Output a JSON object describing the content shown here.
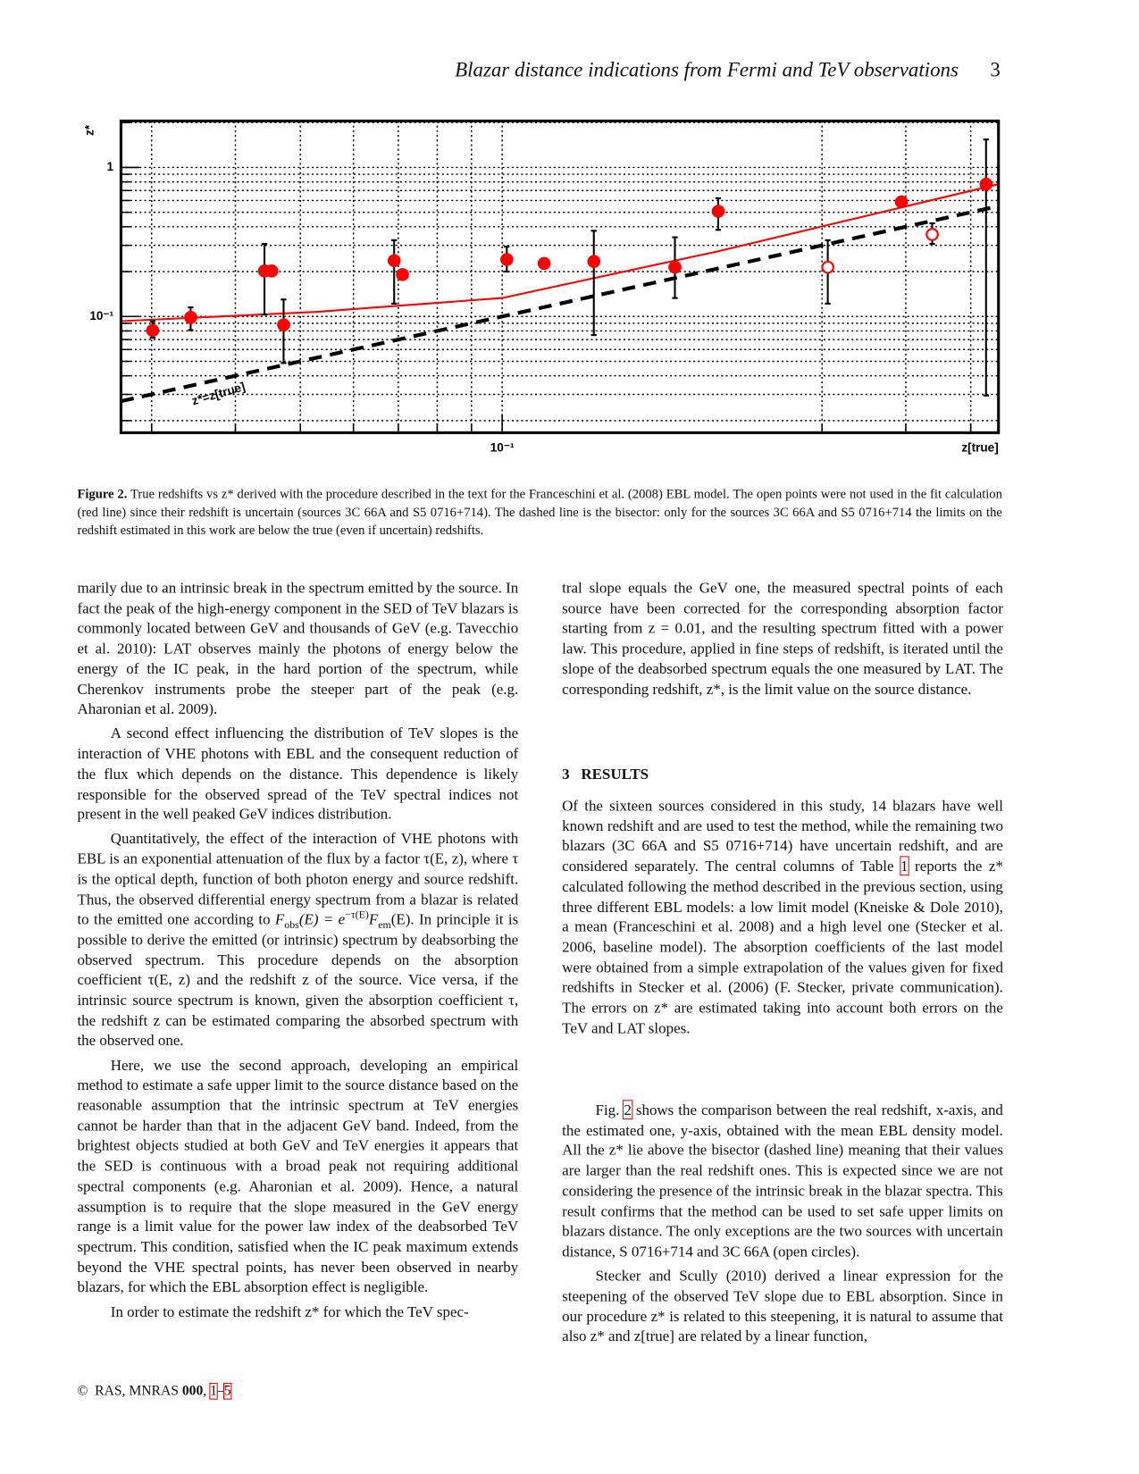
{
  "header": {
    "running_title": "Blazar distance indications from Fermi and TeV observations",
    "page_number": "3"
  },
  "chart_data": {
    "type": "scatter",
    "x_label": "z[true]",
    "y_label": "z*",
    "annotation": "z*=z[true]",
    "xscale": "log",
    "yscale": "log",
    "xlim": [
      0.027,
      0.55
    ],
    "ylim": [
      0.0166,
      2.05
    ],
    "xticks": [
      {
        "value": 0.1,
        "label": "10⁻¹"
      }
    ],
    "xminorticks": [
      0.03,
      0.04,
      0.05,
      0.06,
      0.07,
      0.08,
      0.09,
      0.3,
      0.4,
      0.5
    ],
    "yticks": [
      {
        "value": 0.1,
        "label": "10⁻¹"
      },
      1
    ],
    "yminorticks": [
      0.02,
      0.03,
      0.04,
      0.05,
      0.06,
      0.07,
      0.08,
      0.09,
      0.2,
      0.3,
      0.4,
      0.5,
      0.6,
      0.7,
      0.8,
      0.9,
      2
    ],
    "grid": true,
    "series": [
      {
        "marker": "filled",
        "color": "#ff0000",
        "x": [
          0.0301,
          0.0343,
          0.0442,
          0.0453,
          0.0472,
          0.069,
          0.071,
          0.1016,
          0.1155,
          0.137,
          0.181,
          0.21,
          0.394,
          0.527
        ],
        "values": [
          0.0806,
          0.0986,
          0.202,
          0.202,
          0.0879,
          0.237,
          0.191,
          0.241,
          0.227,
          0.234,
          0.214,
          0.508,
          0.587,
          0.772
        ],
        "err_low": [
          0.072,
          0.081,
          0.103,
          null,
          0.0487,
          0.122,
          null,
          0.2,
          null,
          0.075,
          0.133,
          0.381,
          null,
          0.0295
        ],
        "err_high": [
          0.093,
          0.115,
          0.307,
          null,
          0.13,
          0.325,
          null,
          0.294,
          null,
          0.376,
          0.34,
          0.622,
          null,
          1.54
        ]
      },
      {
        "marker": "open",
        "color": "#ff0000",
        "x": [
          0.306,
          0.438
        ],
        "values": [
          0.214,
          0.355
        ],
        "err_low": [
          0.122,
          0.307
        ],
        "err_high": [
          0.325,
          0.422
        ]
      },
      {
        "type": "line",
        "color": "#ff0000",
        "x": [
          0.027,
          0.053,
          0.1,
          0.21,
          0.55
        ],
        "values": [
          0.093,
          0.1075,
          0.133,
          0.274,
          0.772
        ]
      },
      {
        "type": "line",
        "color": "#000000",
        "dashed": true,
        "x": [
          0.027,
          0.55
        ],
        "values": [
          0.027,
          0.55
        ]
      }
    ]
  },
  "caption": {
    "label": "Figure 2.",
    "text": "True redshifts vs z* derived with the procedure described in the text for the Franceschini et al. (2008) EBL model. The open points were not used in the fit calculation (red line) since their redshift is uncertain (sources 3C 66A and S5 0716+714). The dashed line is the bisector: only for the sources 3C 66A and S5 0716+714 the limits on the redshift estimated in this work are below the true (even if uncertain) redshifts."
  },
  "left_column": {
    "paragraphs": [
      "marily due to an intrinsic break in the spectrum emitted by the source. In fact the peak of the high-energy component in the SED of TeV blazars is commonly located between GeV and thousands of GeV (e.g. Tavecchio et al. 2010): LAT observes mainly the photons of energy below the energy of the IC peak, in the hard portion of the spectrum, while Cherenkov instruments probe the steeper part of the peak (e.g. Aharonian et al. 2009).",
      "A second effect influencing the distribution of TeV slopes is the interaction of VHE photons with EBL and the consequent reduction of the flux which depends on the distance. This dependence is likely responsible for the observed spread of the TeV spectral indices not present in the well peaked GeV indices distribution.",
      [
        "Quantitatively, the effect of the interaction of VHE photons with EBL is an exponential attenuation of the flux by a factor τ(E, z), where τ is the optical depth, function of both photon energy and source redshift. Thus, the observed differential energy spectrum from a blazar is related to the emitted one according to ",
        "F",
        "obs",
        "(E) = e",
        "−τ(E)",
        "F",
        "em",
        "(E). In principle it is possible to derive the emitted (or intrinsic) spectrum by deabsorbing the observed spectrum. This procedure depends on the absorption coefficient τ(E, z) and the redshift z of the source. Vice versa, if the intrinsic source spectrum is known, given the absorption coefficient τ, the redshift z can be estimated comparing the absorbed spectrum with the observed one."
      ],
      "Here, we use the second approach, developing an empirical method to estimate a safe upper limit to the source distance based on the reasonable assumption that the intrinsic spectrum at TeV energies cannot be harder than that in the adjacent GeV band. Indeed, from the brightest objects studied at both GeV and TeV energies it appears that the SED is continuous with a broad peak not requiring additional spectral components (e.g. Aharonian et al. 2009). Hence, a natural assumption is to require that the slope measured in the GeV energy range is a limit value for the power law index of the deabsorbed TeV spectrum. This condition, satisfied when the IC peak maximum extends beyond the VHE spectral points, has never been observed in nearby blazars, for which the EBL absorption effect is negligible.",
      "In order to estimate the redshift z* for which the TeV spec-"
    ]
  },
  "right_column": {
    "paragraphs_top": [
      "tral slope equals the GeV one, the measured spectral points of each source have been corrected for the corresponding absorption factor starting from z = 0.01, and the resulting spectrum fitted with a power law. This procedure, applied in fine steps of redshift, is iterated until the slope of the deabsorbed spectrum equals the one measured by LAT. The corresponding redshift, z*, is the limit value on the source distance."
    ],
    "section_number": "3",
    "section_title": "RESULTS",
    "results": [
      "Of the sixteen sources considered in this study, 14 blazars have well known redshift and are used to test the method, while the remaining two blazars (3C 66A and S5 0716+714) have uncertain redshift, and are considered separately. The central columns of Table ",
      "1",
      " reports the z* calculated following the method described in the previous section, using three different EBL models: a low limit model (Kneiske & Dole 2010), a mean (Franceschini et al. 2008) and a high level one (Stecker et al. 2006, baseline model). The absorption coefficients of the last model were obtained from a simple extrapolation of the values given for fixed redshifts in Stecker et al. (2006) (F. Stecker, private communication). The errors on z* are estimated taking into account both errors on the TeV and LAT slopes."
    ],
    "discussion": [
      [
        "Fig. ",
        "2",
        " shows the comparison between the real redshift, x-axis, and the estimated one, y-axis, obtained with the mean EBL density model. All the z* lie above the bisector (dashed line) meaning that their values are larger than the real redshift ones. This is expected since we are not considering the presence of the intrinsic break in the blazar spectra. This result confirms that the method can be used to set safe upper limits on blazars distance. The only exceptions are the two sources with uncertain distance, S 0716+714 and 3C 66A (open circles)."
      ],
      "Stecker and Scully (2010) derived a linear expression for the steepening of the observed TeV slope due to EBL absorption. Since in our procedure z* is related to this steepening, it is natural to assume that also z* and z[true] are related by a linear function,"
    ]
  },
  "footer": {
    "copyright": "©",
    "journal": "RAS, MNRAS",
    "volume": "000",
    "separator": ",",
    "first_page": "1",
    "dash": "–",
    "last_page": "5"
  }
}
